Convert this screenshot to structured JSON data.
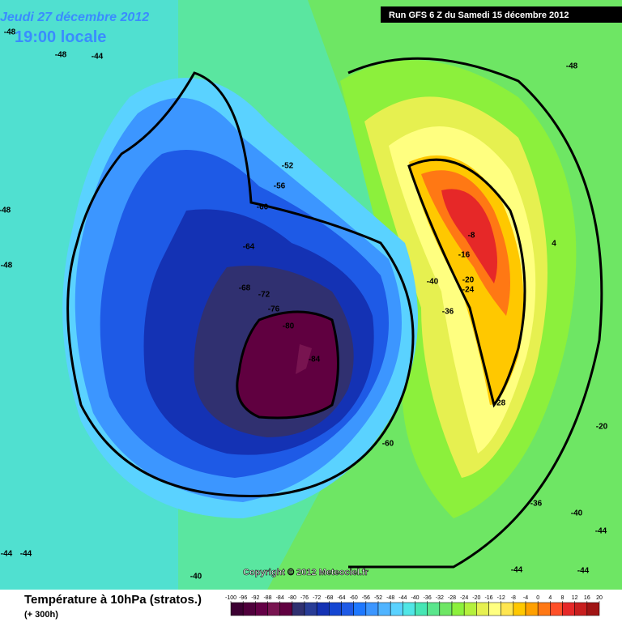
{
  "header": {
    "date": "Jeudi 27 décembre 2012",
    "time": "19:00 locale",
    "run": "Run GFS 6 Z du Samedi 15 décembre 2012"
  },
  "copyright": "Copyright © 2012 Meteociel.fr",
  "footer": {
    "title": "Température à 10hPa (stratos.)",
    "subtitle": "(+ 300h)"
  },
  "legend": {
    "ticks": [
      -100,
      -96,
      -92,
      -88,
      -84,
      -80,
      -76,
      -72,
      -68,
      -64,
      -60,
      -56,
      -52,
      -48,
      -44,
      -40,
      -36,
      -32,
      -28,
      -24,
      -20,
      -16,
      -12,
      -8,
      -4,
      0,
      4,
      8,
      12,
      16,
      20
    ],
    "colors": [
      "#3c0032",
      "#50003c",
      "#640046",
      "#781450",
      "#600040",
      "#303070",
      "#283c96",
      "#1432b4",
      "#1446d2",
      "#1e5ae6",
      "#1e78ff",
      "#3c96ff",
      "#50b4ff",
      "#5ad2ff",
      "#50e6e6",
      "#46e6b4",
      "#5ae68c",
      "#6ee664",
      "#8cf03c",
      "#b4f03c",
      "#e6f050",
      "#ffff80",
      "#ffe650",
      "#ffc800",
      "#ffa000",
      "#ff7814",
      "#ff5028",
      "#e62828",
      "#c81e1e",
      "#a01414"
    ]
  },
  "contour_labels": [
    -48,
    -48,
    -48,
    -48,
    -48,
    -52,
    -56,
    -60,
    -64,
    -68,
    -72,
    -76,
    -80,
    -84,
    -60,
    -40,
    -36,
    -8,
    -16,
    -20,
    -24,
    -28,
    -20,
    -36,
    -40,
    -44,
    -44,
    -44,
    -44,
    -44,
    -44,
    -40,
    4
  ]
}
